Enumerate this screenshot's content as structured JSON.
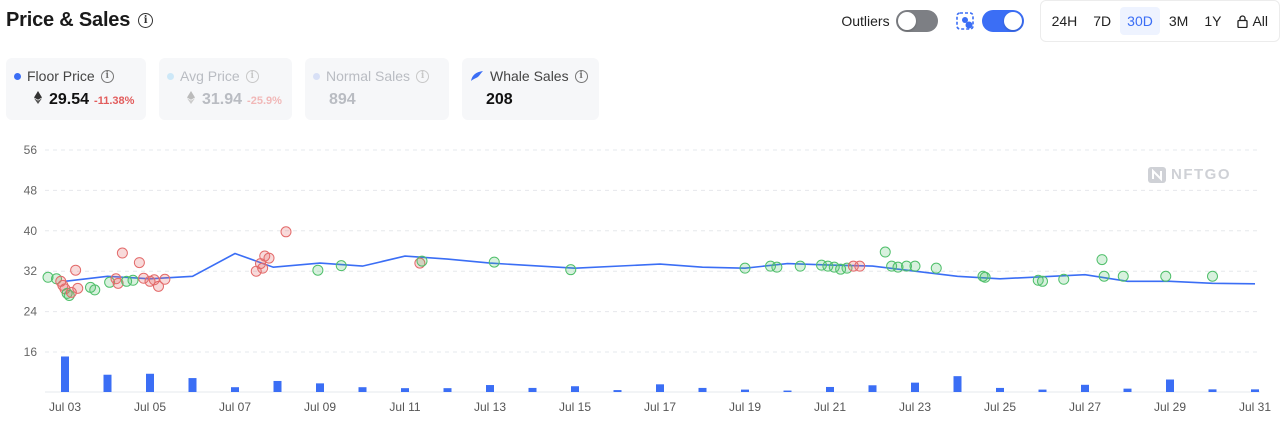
{
  "header": {
    "title": "Price & Sales"
  },
  "controls": {
    "outliers_label": "Outliers",
    "outliers_on": false,
    "whale_on": true,
    "ranges": [
      {
        "label": "24H",
        "active": false
      },
      {
        "label": "7D",
        "active": false
      },
      {
        "label": "30D",
        "active": true
      },
      {
        "label": "3M",
        "active": false
      },
      {
        "label": "1Y",
        "active": false
      },
      {
        "label": "All",
        "active": false,
        "lock": true
      }
    ]
  },
  "stats": {
    "floor": {
      "label": "Floor Price",
      "value": "29.54",
      "change": "-11.38%",
      "color": "#3b6ef5"
    },
    "avg": {
      "label": "Avg Price",
      "value": "31.94",
      "change": "-25.9%",
      "color": "#8ec9f0"
    },
    "normal": {
      "label": "Normal Sales",
      "value": "894",
      "color": "#b4c4ee"
    },
    "whale": {
      "label": "Whale Sales",
      "value": "208",
      "color": "#3b6ef5"
    }
  },
  "watermark": "NFTGO",
  "chart_data": {
    "type": "line",
    "x_range": [
      "Jul 02",
      "Jul 31"
    ],
    "x_ticks": [
      "Jul 03",
      "Jul 05",
      "Jul 07",
      "Jul 09",
      "Jul 11",
      "Jul 13",
      "Jul 15",
      "Jul 17",
      "Jul 19",
      "Jul 21",
      "Jul 23",
      "Jul 25",
      "Jul 27",
      "Jul 29",
      "Jul 31"
    ],
    "y_ticks": [
      "56",
      "48",
      "40",
      "32",
      "24",
      "16"
    ],
    "ylim": [
      8,
      56
    ],
    "grid": true,
    "colors": {
      "floor_line": "#3b6ef5",
      "volume_bar": "#3b6ef5",
      "sale_green": "#4fbf6a",
      "sale_red": "#e36a6a"
    },
    "floor_price": [
      [
        3.0,
        30.0
      ],
      [
        4.0,
        31.0
      ],
      [
        5.0,
        30.5
      ],
      [
        6.0,
        31.0
      ],
      [
        7.0,
        35.5
      ],
      [
        7.9,
        32.8
      ],
      [
        9.0,
        33.6
      ],
      [
        10.0,
        33.0
      ],
      [
        11.0,
        35.0
      ],
      [
        12.0,
        34.4
      ],
      [
        13.0,
        33.6
      ],
      [
        15.0,
        32.6
      ],
      [
        17.0,
        33.4
      ],
      [
        18.0,
        32.8
      ],
      [
        19.0,
        32.6
      ],
      [
        20.0,
        33.5
      ],
      [
        21.0,
        33.2
      ],
      [
        22.0,
        33.0
      ],
      [
        23.0,
        32.0
      ],
      [
        24.0,
        31.0
      ],
      [
        25.0,
        30.5
      ],
      [
        27.0,
        31.3
      ],
      [
        28.0,
        30.0
      ],
      [
        29.0,
        30.0
      ],
      [
        30.0,
        29.6
      ],
      [
        31.0,
        29.5
      ]
    ],
    "sales": [
      {
        "x": 2.6,
        "y": 30.8,
        "c": "green"
      },
      {
        "x": 2.8,
        "y": 30.5,
        "c": "green"
      },
      {
        "x": 2.9,
        "y": 30.0,
        "c": "red"
      },
      {
        "x": 2.95,
        "y": 29.2,
        "c": "red"
      },
      {
        "x": 3.0,
        "y": 28.5,
        "c": "red"
      },
      {
        "x": 3.05,
        "y": 27.6,
        "c": "green"
      },
      {
        "x": 3.1,
        "y": 27.2,
        "c": "green"
      },
      {
        "x": 3.15,
        "y": 27.8,
        "c": "red"
      },
      {
        "x": 3.25,
        "y": 32.2,
        "c": "red"
      },
      {
        "x": 3.3,
        "y": 28.6,
        "c": "red"
      },
      {
        "x": 3.6,
        "y": 28.8,
        "c": "green"
      },
      {
        "x": 3.7,
        "y": 28.3,
        "c": "green"
      },
      {
        "x": 4.05,
        "y": 29.8,
        "c": "green"
      },
      {
        "x": 4.2,
        "y": 30.5,
        "c": "red"
      },
      {
        "x": 4.25,
        "y": 29.6,
        "c": "red"
      },
      {
        "x": 4.35,
        "y": 35.6,
        "c": "red"
      },
      {
        "x": 4.45,
        "y": 30.0,
        "c": "green"
      },
      {
        "x": 4.6,
        "y": 30.2,
        "c": "green"
      },
      {
        "x": 4.75,
        "y": 33.7,
        "c": "red"
      },
      {
        "x": 4.85,
        "y": 30.6,
        "c": "red"
      },
      {
        "x": 5.0,
        "y": 30.0,
        "c": "red"
      },
      {
        "x": 5.1,
        "y": 30.3,
        "c": "red"
      },
      {
        "x": 5.2,
        "y": 29.0,
        "c": "red"
      },
      {
        "x": 5.35,
        "y": 30.4,
        "c": "red"
      },
      {
        "x": 7.5,
        "y": 32.0,
        "c": "red"
      },
      {
        "x": 7.6,
        "y": 33.5,
        "c": "red"
      },
      {
        "x": 7.65,
        "y": 32.6,
        "c": "red"
      },
      {
        "x": 7.7,
        "y": 35.0,
        "c": "red"
      },
      {
        "x": 7.8,
        "y": 34.6,
        "c": "red"
      },
      {
        "x": 8.2,
        "y": 39.8,
        "c": "red"
      },
      {
        "x": 8.95,
        "y": 32.2,
        "c": "green"
      },
      {
        "x": 9.5,
        "y": 33.1,
        "c": "green"
      },
      {
        "x": 11.35,
        "y": 33.6,
        "c": "red"
      },
      {
        "x": 11.4,
        "y": 34.0,
        "c": "green"
      },
      {
        "x": 13.1,
        "y": 33.8,
        "c": "green"
      },
      {
        "x": 14.9,
        "y": 32.3,
        "c": "green"
      },
      {
        "x": 19.0,
        "y": 32.6,
        "c": "green"
      },
      {
        "x": 19.6,
        "y": 33.0,
        "c": "green"
      },
      {
        "x": 19.75,
        "y": 32.8,
        "c": "green"
      },
      {
        "x": 20.3,
        "y": 33.0,
        "c": "green"
      },
      {
        "x": 20.8,
        "y": 33.2,
        "c": "green"
      },
      {
        "x": 20.95,
        "y": 33.0,
        "c": "green"
      },
      {
        "x": 21.1,
        "y": 32.8,
        "c": "green"
      },
      {
        "x": 21.25,
        "y": 32.4,
        "c": "green"
      },
      {
        "x": 21.4,
        "y": 32.6,
        "c": "green"
      },
      {
        "x": 21.55,
        "y": 33.0,
        "c": "red"
      },
      {
        "x": 21.7,
        "y": 33.0,
        "c": "red"
      },
      {
        "x": 22.3,
        "y": 35.8,
        "c": "green"
      },
      {
        "x": 22.45,
        "y": 33.0,
        "c": "green"
      },
      {
        "x": 22.6,
        "y": 32.8,
        "c": "green"
      },
      {
        "x": 22.8,
        "y": 33.0,
        "c": "green"
      },
      {
        "x": 23.0,
        "y": 33.0,
        "c": "green"
      },
      {
        "x": 23.5,
        "y": 32.6,
        "c": "green"
      },
      {
        "x": 24.6,
        "y": 31.0,
        "c": "green"
      },
      {
        "x": 24.65,
        "y": 30.8,
        "c": "green"
      },
      {
        "x": 25.9,
        "y": 30.2,
        "c": "green"
      },
      {
        "x": 26.0,
        "y": 30.0,
        "c": "green"
      },
      {
        "x": 26.5,
        "y": 30.4,
        "c": "green"
      },
      {
        "x": 27.4,
        "y": 34.3,
        "c": "green"
      },
      {
        "x": 27.45,
        "y": 31.0,
        "c": "green"
      },
      {
        "x": 27.9,
        "y": 31.0,
        "c": "green"
      },
      {
        "x": 28.9,
        "y": 31.0,
        "c": "green"
      },
      {
        "x": 30.0,
        "y": 31.0,
        "c": "green"
      }
    ],
    "volume": [
      [
        3.0,
        14.8
      ],
      [
        4.0,
        7.2
      ],
      [
        5.0,
        7.6
      ],
      [
        6.0,
        5.8
      ],
      [
        7.0,
        2.0
      ],
      [
        8.0,
        4.6
      ],
      [
        9.0,
        3.6
      ],
      [
        10.0,
        2.0
      ],
      [
        11.0,
        1.6
      ],
      [
        12.0,
        1.6
      ],
      [
        13.0,
        2.9
      ],
      [
        14.0,
        1.7
      ],
      [
        15.0,
        2.4
      ],
      [
        16.0,
        0.8
      ],
      [
        17.0,
        3.2
      ],
      [
        18.0,
        1.7
      ],
      [
        19.0,
        1.0
      ],
      [
        20.0,
        0.6
      ],
      [
        21.0,
        2.1
      ],
      [
        22.0,
        2.8
      ],
      [
        23.0,
        3.9
      ],
      [
        24.0,
        6.6
      ],
      [
        25.0,
        1.7
      ],
      [
        26.0,
        1.0
      ],
      [
        27.0,
        3.0
      ],
      [
        28.0,
        1.4
      ],
      [
        29.0,
        5.2
      ],
      [
        30.0,
        1.1
      ],
      [
        31.0,
        1.1
      ]
    ]
  }
}
